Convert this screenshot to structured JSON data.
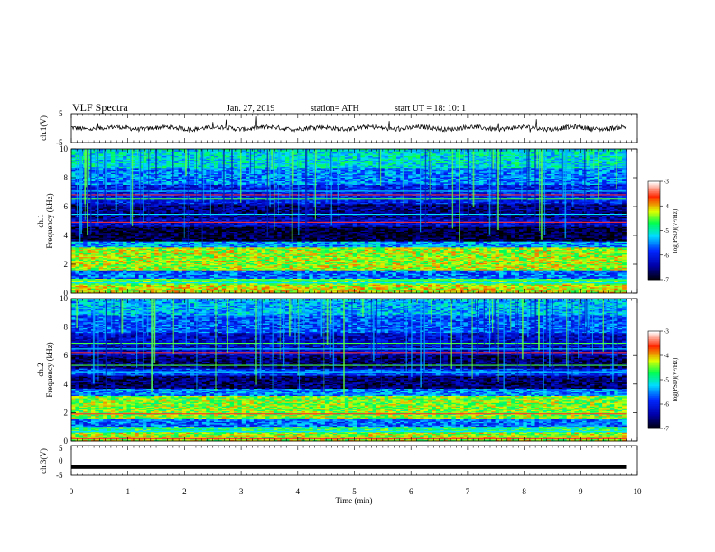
{
  "header": {
    "title": "VLF  Spectra",
    "date": "Jan. 27, 2019",
    "station": "station= ATH",
    "start": "start  UT  =    18: 10: 1"
  },
  "colors": {
    "spectrum_low": "#000000",
    "spectrum_mid_blue": "#0000ff",
    "spectrum_cyan": "#00ffff",
    "spectrum_green": "#00ff00",
    "spectrum_yellow": "#ffff00",
    "spectrum_red": "#ff0000",
    "spectrum_high": "#ffffff"
  },
  "chart_data": [
    {
      "type": "line",
      "panel": "ch1-waveform",
      "ylabel": "ch.1(V)",
      "ylim": [
        -5,
        5
      ],
      "yticks": [
        "5",
        "-5"
      ],
      "xlim": [
        0,
        10
      ],
      "baseline_v": 0,
      "note_series": "noisy broadband waveform around 0 V with spikes"
    },
    {
      "type": "heatmap",
      "panel": "ch1-spectrogram",
      "ylabel_1": "ch.1",
      "ylabel_2": "Frequency  (kHz)",
      "ylim": [
        0,
        10
      ],
      "yticks": [
        "0",
        "2",
        "4",
        "6",
        "8",
        "10"
      ],
      "xlim": [
        0,
        9.8
      ],
      "colorbar": {
        "label": "log(PSD)(V²/Hz)",
        "range": [
          -7,
          -3
        ],
        "ticks": [
          "-3",
          "-4",
          "-5",
          "-6",
          "-7"
        ]
      },
      "bands_khz": [
        {
          "from": 0.0,
          "to": 0.6,
          "level": -4.2
        },
        {
          "from": 0.6,
          "to": 1.0,
          "level": -4.6
        },
        {
          "from": 1.0,
          "to": 1.6,
          "level": -5.6
        },
        {
          "from": 1.6,
          "to": 3.2,
          "level": -4.3
        },
        {
          "from": 3.2,
          "to": 3.6,
          "level": -5.4
        },
        {
          "from": 3.6,
          "to": 4.6,
          "level": -6.8
        },
        {
          "from": 4.6,
          "to": 5.2,
          "level": -6.2
        },
        {
          "from": 5.2,
          "to": 6.2,
          "level": -6.5
        },
        {
          "from": 6.2,
          "to": 7.5,
          "level": -6.0
        },
        {
          "from": 7.5,
          "to": 8.7,
          "level": -5.5
        },
        {
          "from": 8.7,
          "to": 10.0,
          "level": -5.1
        }
      ]
    },
    {
      "type": "heatmap",
      "panel": "ch2-spectrogram",
      "ylabel_1": "ch.2",
      "ylabel_2": "Frequency  (kHz)",
      "ylim": [
        0,
        10
      ],
      "yticks": [
        "0",
        "2",
        "4",
        "6",
        "8",
        "10"
      ],
      "xlim": [
        0,
        9.8
      ],
      "colorbar": {
        "label": "log(PSD)(V²/Hz)",
        "range": [
          -7,
          -3
        ],
        "ticks": [
          "-3",
          "-4",
          "-5",
          "-6",
          "-7"
        ]
      },
      "bands_khz": [
        {
          "from": 0.0,
          "to": 0.6,
          "level": -4.3
        },
        {
          "from": 0.6,
          "to": 1.0,
          "level": -4.8
        },
        {
          "from": 1.0,
          "to": 1.6,
          "level": -5.6
        },
        {
          "from": 1.6,
          "to": 3.2,
          "level": -4.4
        },
        {
          "from": 3.2,
          "to": 3.7,
          "level": -5.5
        },
        {
          "from": 3.7,
          "to": 4.6,
          "level": -6.6
        },
        {
          "from": 4.6,
          "to": 5.1,
          "level": -5.8
        },
        {
          "from": 5.1,
          "to": 6.0,
          "level": -6.6
        },
        {
          "from": 6.0,
          "to": 7.6,
          "level": -6.2
        },
        {
          "from": 7.6,
          "to": 8.8,
          "level": -5.7
        },
        {
          "from": 8.8,
          "to": 10.0,
          "level": -5.3
        }
      ]
    },
    {
      "type": "line",
      "panel": "ch3-waveform",
      "ylabel": "ch.3(V)",
      "ylim": [
        -5,
        5
      ],
      "yticks": [
        "5",
        "0",
        "-5"
      ],
      "xlim": [
        0,
        10
      ],
      "baseline_v": -2.2
    },
    {
      "type": "axis",
      "panel": "time-axis",
      "xlabel": "Time  (min)",
      "xticks": [
        "0",
        "1",
        "2",
        "3",
        "4",
        "5",
        "6",
        "7",
        "8",
        "9",
        "10"
      ],
      "xlim": [
        0,
        10
      ]
    }
  ]
}
